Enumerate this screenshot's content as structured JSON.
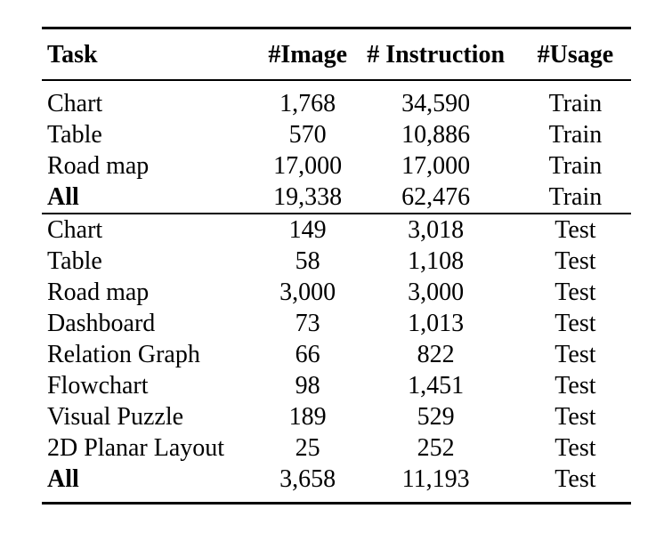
{
  "header": {
    "task": "Task",
    "image": "#Image",
    "instruction": "# Instruction",
    "usage": "#Usage"
  },
  "train_rows": [
    {
      "task": "Chart",
      "image": "1,768",
      "instruction": "34,590",
      "usage": "Train"
    },
    {
      "task": "Table",
      "image": "570",
      "instruction": "10,886",
      "usage": "Train"
    },
    {
      "task": "Road map",
      "image": "17,000",
      "instruction": "17,000",
      "usage": "Train"
    },
    {
      "task": "All",
      "image": "19,338",
      "instruction": "62,476",
      "usage": "Train"
    }
  ],
  "test_rows": [
    {
      "task": "Chart",
      "image": "149",
      "instruction": "3,018",
      "usage": "Test"
    },
    {
      "task": "Table",
      "image": "58",
      "instruction": "1,108",
      "usage": "Test"
    },
    {
      "task": "Road map",
      "image": "3,000",
      "instruction": "3,000",
      "usage": "Test"
    },
    {
      "task": "Dashboard",
      "image": "73",
      "instruction": "1,013",
      "usage": "Test"
    },
    {
      "task": "Relation Graph",
      "image": "66",
      "instruction": "822",
      "usage": "Test"
    },
    {
      "task": "Flowchart",
      "image": "98",
      "instruction": "1,451",
      "usage": "Test"
    },
    {
      "task": "Visual Puzzle",
      "image": "189",
      "instruction": "529",
      "usage": "Test"
    },
    {
      "task": "2D Planar Layout",
      "image": "25",
      "instruction": "252",
      "usage": "Test"
    },
    {
      "task": "All",
      "image": "3,658",
      "instruction": "11,193",
      "usage": "Test"
    }
  ]
}
